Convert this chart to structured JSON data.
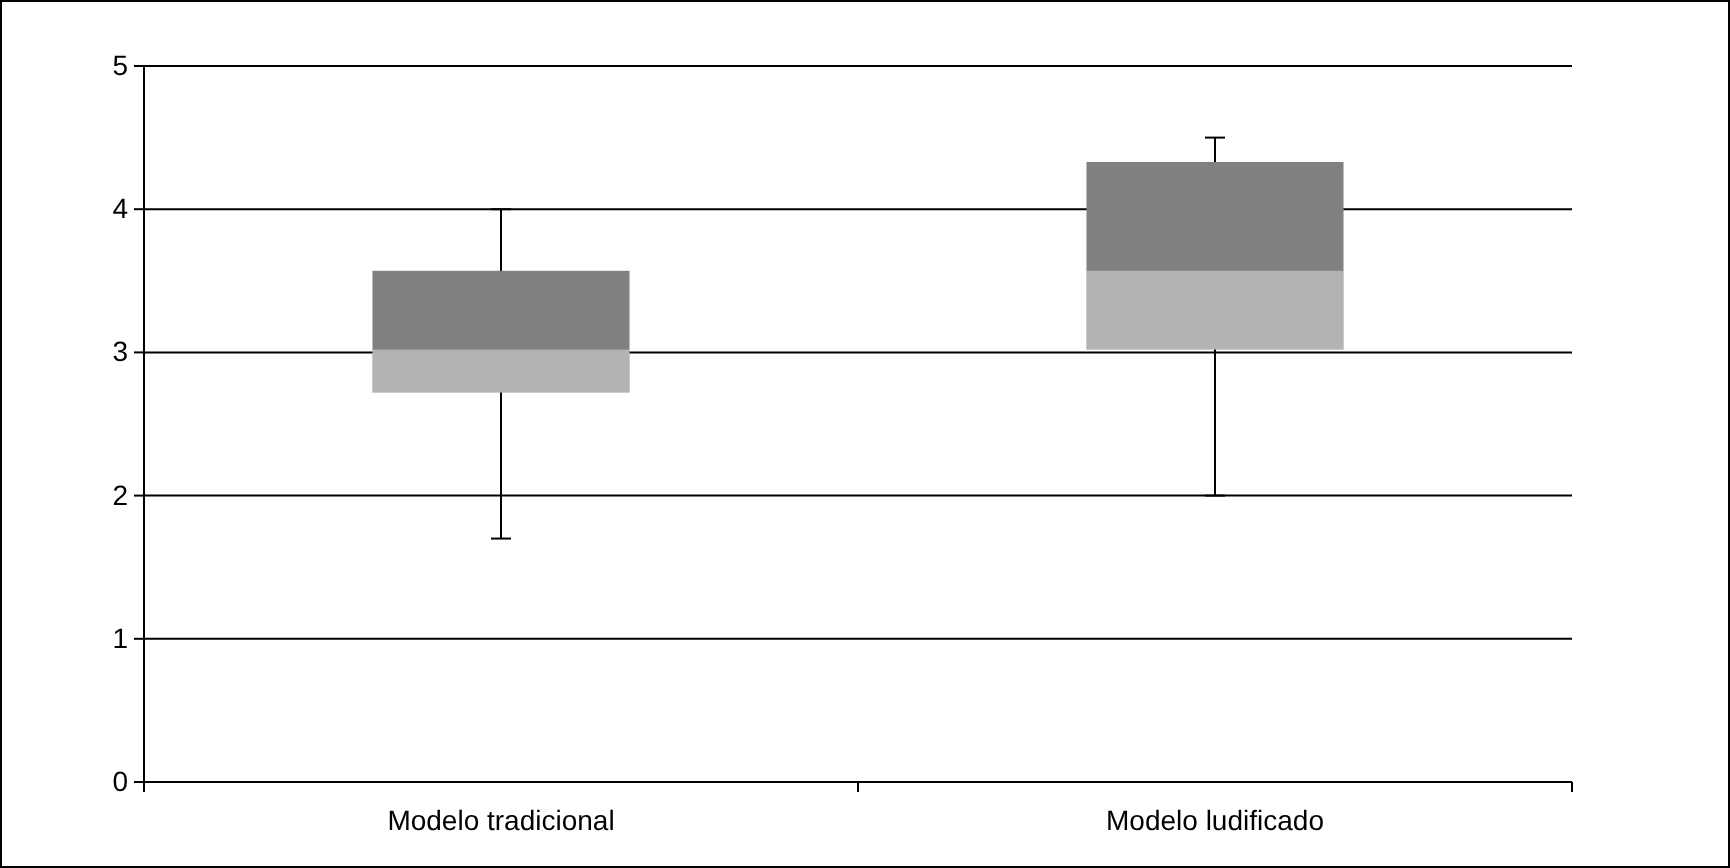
{
  "chart_data": {
    "type": "box",
    "categories": [
      "Modelo tradicional",
      "Modelo ludificado"
    ],
    "boxes": [
      {
        "low": 1.7,
        "q1": 2.72,
        "median": 3.02,
        "q3": 3.57,
        "high": 4.0
      },
      {
        "low": 2.0,
        "q1": 3.02,
        "median": 3.57,
        "q3": 4.33,
        "high": 4.5
      }
    ],
    "color": "#808080",
    "ylim": [
      0,
      5
    ],
    "yticks": [
      0,
      1,
      2,
      3,
      4,
      5
    ],
    "grid": "y"
  }
}
